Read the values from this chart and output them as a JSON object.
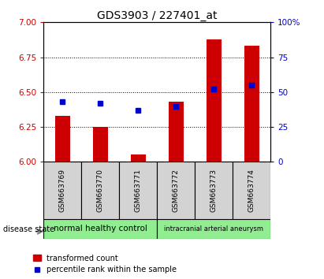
{
  "title": "GDS3903 / 227401_at",
  "samples": [
    "GSM663769",
    "GSM663770",
    "GSM663771",
    "GSM663772",
    "GSM663773",
    "GSM663774"
  ],
  "transformed_count": [
    6.33,
    6.25,
    6.05,
    6.43,
    6.88,
    6.83
  ],
  "percentile_rank": [
    43,
    42,
    37,
    40,
    52,
    55
  ],
  "ylim_left": [
    6.0,
    7.0
  ],
  "ylim_right": [
    0,
    100
  ],
  "yticks_left": [
    6.0,
    6.25,
    6.5,
    6.75,
    7.0
  ],
  "yticks_right": [
    0,
    25,
    50,
    75,
    100
  ],
  "bar_color": "#cc0000",
  "marker_color": "#0000cc",
  "groups": [
    {
      "label": "normal healthy control",
      "n": 3,
      "color": "#90ee90"
    },
    {
      "label": "intracranial arterial aneurysm",
      "n": 3,
      "color": "#90ee90"
    }
  ],
  "disease_state_label": "disease state",
  "legend_bar_label": "transformed count",
  "legend_marker_label": "percentile rank within the sample",
  "grid_color": "black",
  "tick_color_left": "#cc0000",
  "tick_color_right": "#0000cc",
  "plot_bg_color": "#ffffff",
  "xticklabel_bg": "#d3d3d3",
  "bar_width": 0.4,
  "title_fontsize": 10,
  "label_fontsize": 7,
  "tick_fontsize": 7.5
}
